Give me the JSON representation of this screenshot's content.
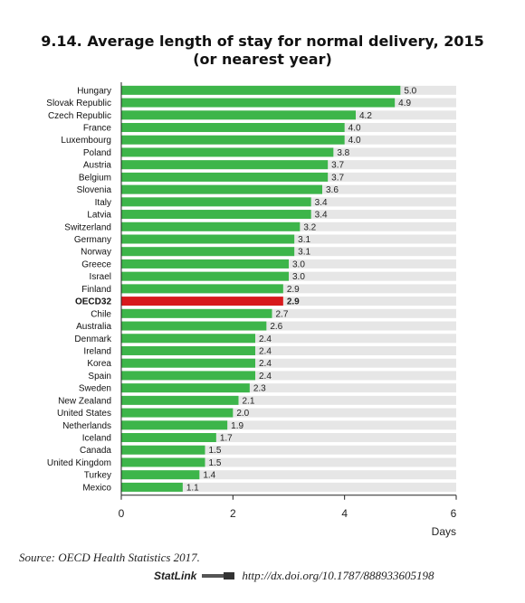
{
  "title_line1": "9.14. Average length of stay for normal delivery, 2015",
  "title_line2": "(or nearest year)",
  "source": "Source: OECD Health Statistics 2017.",
  "statlink": {
    "label": "StatLink",
    "url": "http://dx.doi.org/10.1787/888933605198"
  },
  "colors": {
    "bar": "#3db54a",
    "highlight": "#d7191c",
    "track": "#e6e6e6",
    "axis": "#222222"
  },
  "chart_data": {
    "type": "bar",
    "orientation": "horizontal",
    "title": "9.14. Average length of stay for normal delivery, 2015 (or nearest year)",
    "xlabel": "Days",
    "ylabel": "",
    "xlim": [
      0,
      6
    ],
    "xticks": [
      0,
      2,
      4,
      6
    ],
    "highlight": "OECD32",
    "grid": false,
    "categories": [
      "Hungary",
      "Slovak Republic",
      "Czech Republic",
      "France",
      "Luxembourg",
      "Poland",
      "Austria",
      "Belgium",
      "Slovenia",
      "Italy",
      "Latvia",
      "Switzerland",
      "Germany",
      "Norway",
      "Greece",
      "Israel",
      "Finland",
      "OECD32",
      "Chile",
      "Australia",
      "Denmark",
      "Ireland",
      "Korea",
      "Spain",
      "Sweden",
      "New Zealand",
      "United States",
      "Netherlands",
      "Iceland",
      "Canada",
      "United Kingdom",
      "Turkey",
      "Mexico"
    ],
    "values": [
      5.0,
      4.9,
      4.2,
      4.0,
      4.0,
      3.8,
      3.7,
      3.7,
      3.6,
      3.4,
      3.4,
      3.2,
      3.1,
      3.1,
      3.0,
      3.0,
      2.9,
      2.9,
      2.7,
      2.6,
      2.4,
      2.4,
      2.4,
      2.4,
      2.3,
      2.1,
      2.0,
      1.9,
      1.7,
      1.5,
      1.5,
      1.4,
      1.1
    ],
    "value_labels": [
      "5.0",
      "4.9",
      "4.2",
      "4.0",
      "4.0",
      "3.8",
      "3.7",
      "3.7",
      "3.6",
      "3.4",
      "3.4",
      "3.2",
      "3.1",
      "3.1",
      "3.0",
      "3.0",
      "2.9",
      "2.9",
      "2.7",
      "2.6",
      "2.4",
      "2.4",
      "2.4",
      "2.4",
      "2.3",
      "2.1",
      "2.0",
      "1.9",
      "1.7",
      "1.5",
      "1.5",
      "1.4",
      "1.1"
    ]
  }
}
